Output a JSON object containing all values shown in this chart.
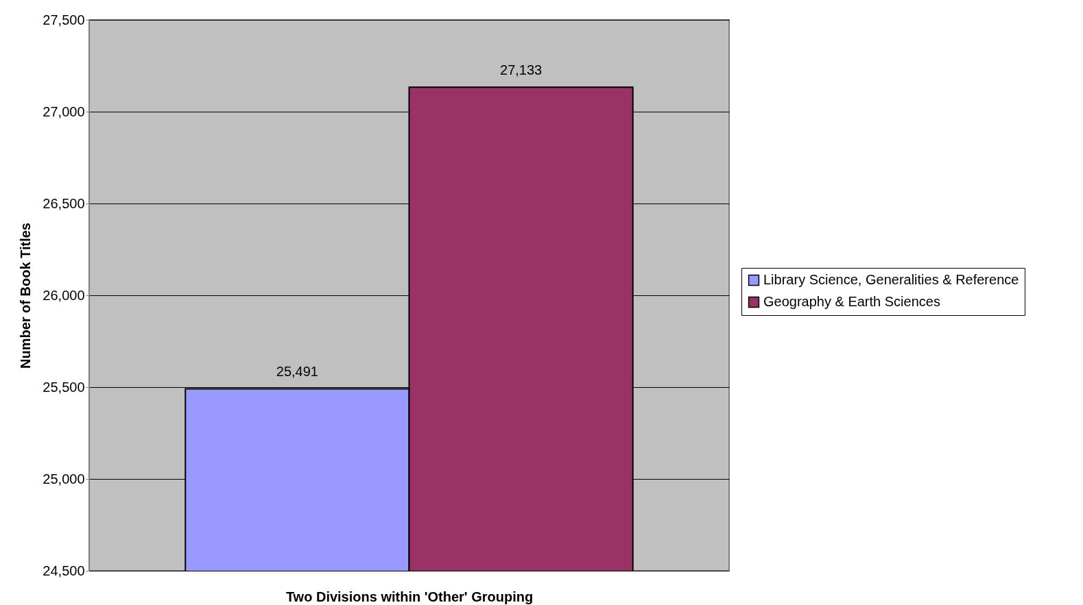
{
  "chart_data": {
    "type": "bar",
    "xlabel": "Two Divisions within 'Other' Grouping",
    "ylabel": "Number of Book Titles",
    "categories": [
      null
    ],
    "series": [
      {
        "name": "Library Science, Generalities & Reference",
        "color": "#9999ff",
        "values": [
          25491
        ],
        "value_labels": [
          "25,491"
        ]
      },
      {
        "name": "Geography & Earth Sciences",
        "color": "#993366",
        "values": [
          27133
        ],
        "value_labels": [
          "27,133"
        ]
      }
    ],
    "ylim": [
      24500,
      27500
    ],
    "yticks": [
      {
        "value": 24500,
        "label": "24,500"
      },
      {
        "value": 25000,
        "label": "25,000"
      },
      {
        "value": 25500,
        "label": "25,500"
      },
      {
        "value": 26000,
        "label": "26,000"
      },
      {
        "value": 26500,
        "label": "26,500"
      },
      {
        "value": 27000,
        "label": "27,000"
      },
      {
        "value": 27500,
        "label": "27,500"
      }
    ],
    "grid": "y",
    "legend": "right"
  }
}
